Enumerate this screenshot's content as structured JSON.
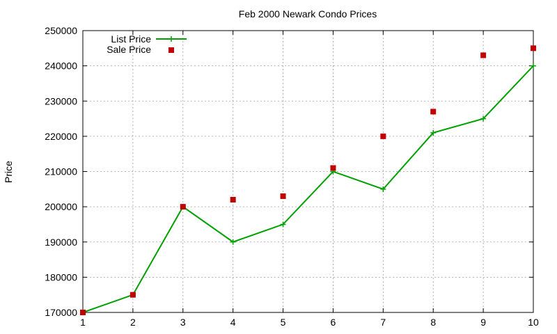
{
  "chart_data": {
    "type": "line",
    "title": "Feb 2000 Newark Condo Prices",
    "xlabel": "",
    "ylabel": "Price",
    "x": [
      1,
      2,
      3,
      4,
      5,
      6,
      7,
      8,
      9,
      10
    ],
    "xlim": [
      1,
      10
    ],
    "ylim": [
      170000,
      250000
    ],
    "x_ticks": [
      "1",
      "2",
      "3",
      "4",
      "5",
      "6",
      "7",
      "8",
      "9",
      "10"
    ],
    "y_ticks": [
      "170000",
      "180000",
      "190000",
      "200000",
      "210000",
      "220000",
      "230000",
      "240000",
      "250000"
    ],
    "grid": true,
    "legend_position": "top-left",
    "series": [
      {
        "name": "List Price",
        "style": "linespoints",
        "marker": "plus",
        "color": "#00a000",
        "values": [
          170000,
          175000,
          200000,
          190000,
          195000,
          210000,
          205000,
          221000,
          225000,
          240000
        ]
      },
      {
        "name": "Sale Price",
        "style": "points",
        "marker": "square",
        "color": "#c00000",
        "values": [
          170000,
          175000,
          200000,
          202000,
          203000,
          211000,
          220000,
          227000,
          243000,
          245000
        ]
      }
    ]
  }
}
